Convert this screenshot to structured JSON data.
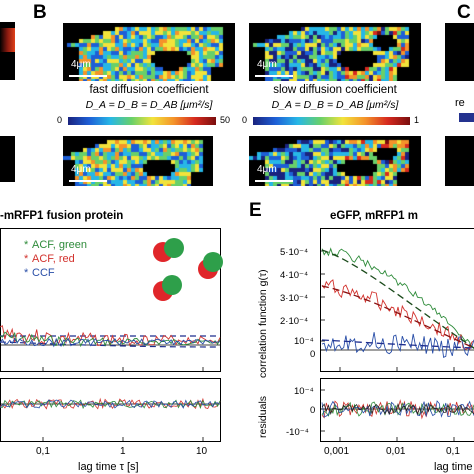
{
  "panels": {
    "b_label": "B",
    "c_label": "C",
    "e_label": "E"
  },
  "scale_bar": "4μm",
  "colorbar_left": {
    "title": "fast diffusion coefficient",
    "subtitle": "D_A = D_B = D_AB [μm²/s]",
    "min": "0",
    "max": "50"
  },
  "colorbar_right": {
    "title": "slow diffusion coefficient",
    "subtitle": "D_A = D_B = D_AB [μm²/s]",
    "min": "0",
    "max": "1"
  },
  "c_fragment": {
    "text": "re"
  },
  "left_plot": {
    "title": "-mRFP1 fusion protein",
    "legend": [
      "ACF, green",
      "ACF, red",
      "CCF"
    ],
    "xticks": [
      "0,1",
      "1",
      "10"
    ],
    "xlabel": "lag time τ [s]"
  },
  "right_plot": {
    "title": "eGFP, mRFP1 m",
    "ylabel": "correlation function g(τ)",
    "yticks": [
      "5·10⁻⁴",
      "4·10⁻⁴",
      "3·10⁻⁴",
      "2·10⁻⁴",
      "10⁻⁴",
      "0"
    ],
    "res_ylabel": "residuals",
    "res_yticks": [
      "10⁻⁴",
      "0",
      "-10⁻⁴"
    ],
    "xticks": [
      "0,001",
      "0,01",
      "0,1"
    ],
    "xlabel": "lag time"
  },
  "colors": {
    "green": "#2e8b3a",
    "red": "#d2322d",
    "blue": "#2a4fa8",
    "dashed": "#1f2f8f"
  }
}
